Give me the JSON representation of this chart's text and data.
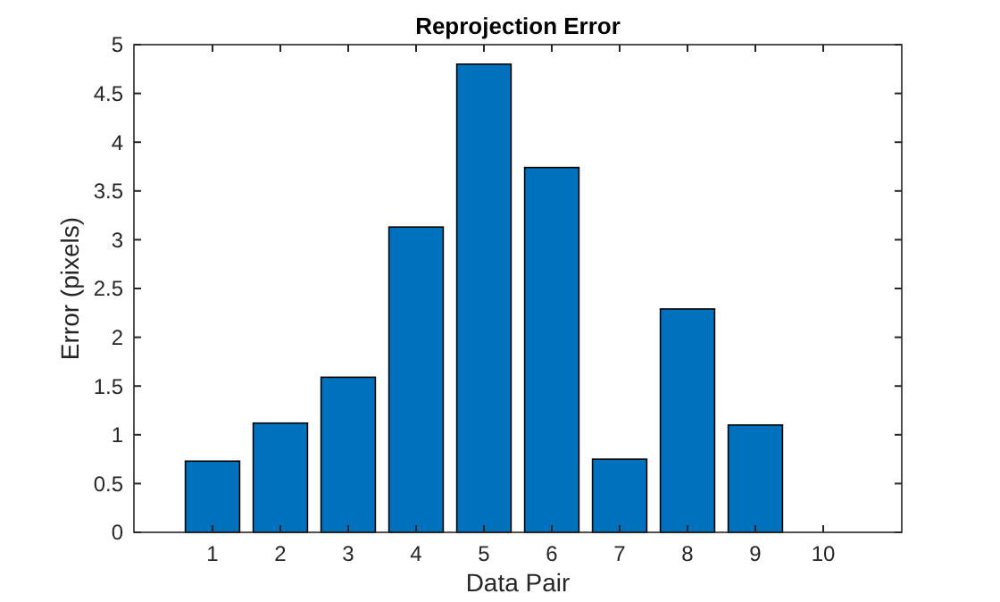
{
  "chart_data": {
    "type": "bar",
    "title": "Reprojection Error",
    "xlabel": "Data Pair",
    "ylabel": "Error (pixels)",
    "categories": [
      "1",
      "2",
      "3",
      "4",
      "5",
      "6",
      "7",
      "8",
      "9",
      "10"
    ],
    "values": [
      0.73,
      1.12,
      1.59,
      3.13,
      4.8,
      3.74,
      0.75,
      2.29,
      1.1,
      null
    ],
    "color": "#0072bd",
    "ylim": [
      0,
      5
    ],
    "yticks": [
      0,
      0.5,
      1,
      1.5,
      2,
      2.5,
      3,
      3.5,
      4,
      4.5,
      5
    ],
    "grid": false
  }
}
